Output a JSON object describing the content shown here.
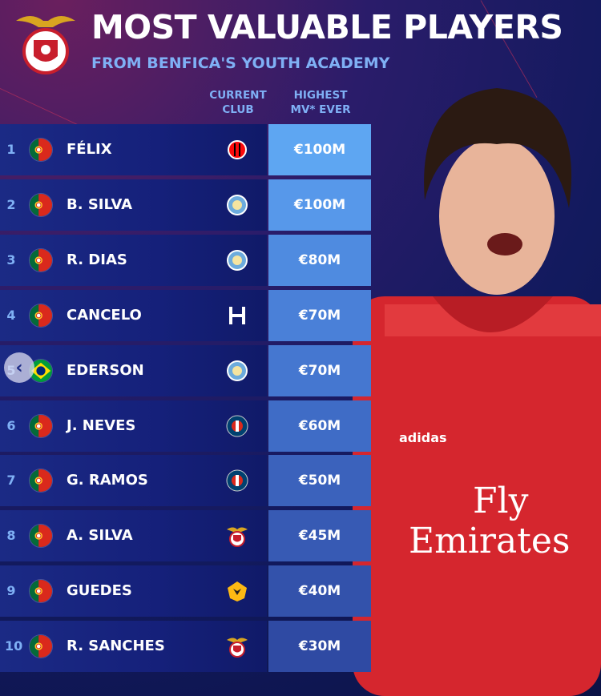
{
  "title": "MOST VALUABLE PLAYERS",
  "subtitle": "FROM BENFICA'S YOUTH ACADEMY",
  "headers": {
    "club": "CURRENT\nCLUB",
    "value": "HIGHEST\nMV* EVER"
  },
  "colors": {
    "accent": "#7fb0f5",
    "row_bg": "#15207a"
  },
  "rows": [
    {
      "rank": "1",
      "flag": "portugal",
      "name": "FÉLIX",
      "club": "ac-milan",
      "value": "€100M",
      "color": "#5ea6f2"
    },
    {
      "rank": "2",
      "flag": "portugal",
      "name": "B. SILVA",
      "club": "manchester-city",
      "value": "€100M",
      "color": "#5798ea"
    },
    {
      "rank": "3",
      "flag": "portugal",
      "name": "R. DIAS",
      "club": "manchester-city",
      "value": "€80M",
      "color": "#4f8be0"
    },
    {
      "rank": "4",
      "flag": "portugal",
      "name": "CANCELO",
      "club": "al-hilal",
      "value": "€70M",
      "color": "#4a80d8"
    },
    {
      "rank": "5",
      "flag": "brazil",
      "name": "EDERSON",
      "club": "manchester-city",
      "value": "€70M",
      "color": "#4577d0"
    },
    {
      "rank": "6",
      "flag": "portugal",
      "name": "J. NEVES",
      "club": "psg",
      "value": "€60M",
      "color": "#3f6cc6"
    },
    {
      "rank": "7",
      "flag": "portugal",
      "name": "G. RAMOS",
      "club": "psg",
      "value": "€50M",
      "color": "#3b62bc"
    },
    {
      "rank": "8",
      "flag": "portugal",
      "name": "A. SILVA",
      "club": "benfica",
      "value": "€45M",
      "color": "#375ab4"
    },
    {
      "rank": "9",
      "flag": "portugal",
      "name": "GUEDES",
      "club": "wolves",
      "value": "€40M",
      "color": "#3352ab"
    },
    {
      "rank": "10",
      "flag": "portugal",
      "name": "R. SANCHES",
      "club": "benfica",
      "value": "€30M",
      "color": "#2f4aa3"
    }
  ],
  "shirt": {
    "sponsor_line1": "Fly",
    "sponsor_line2": "Emirates",
    "brand": "adidas"
  },
  "back_icon": "chevron-left-icon"
}
